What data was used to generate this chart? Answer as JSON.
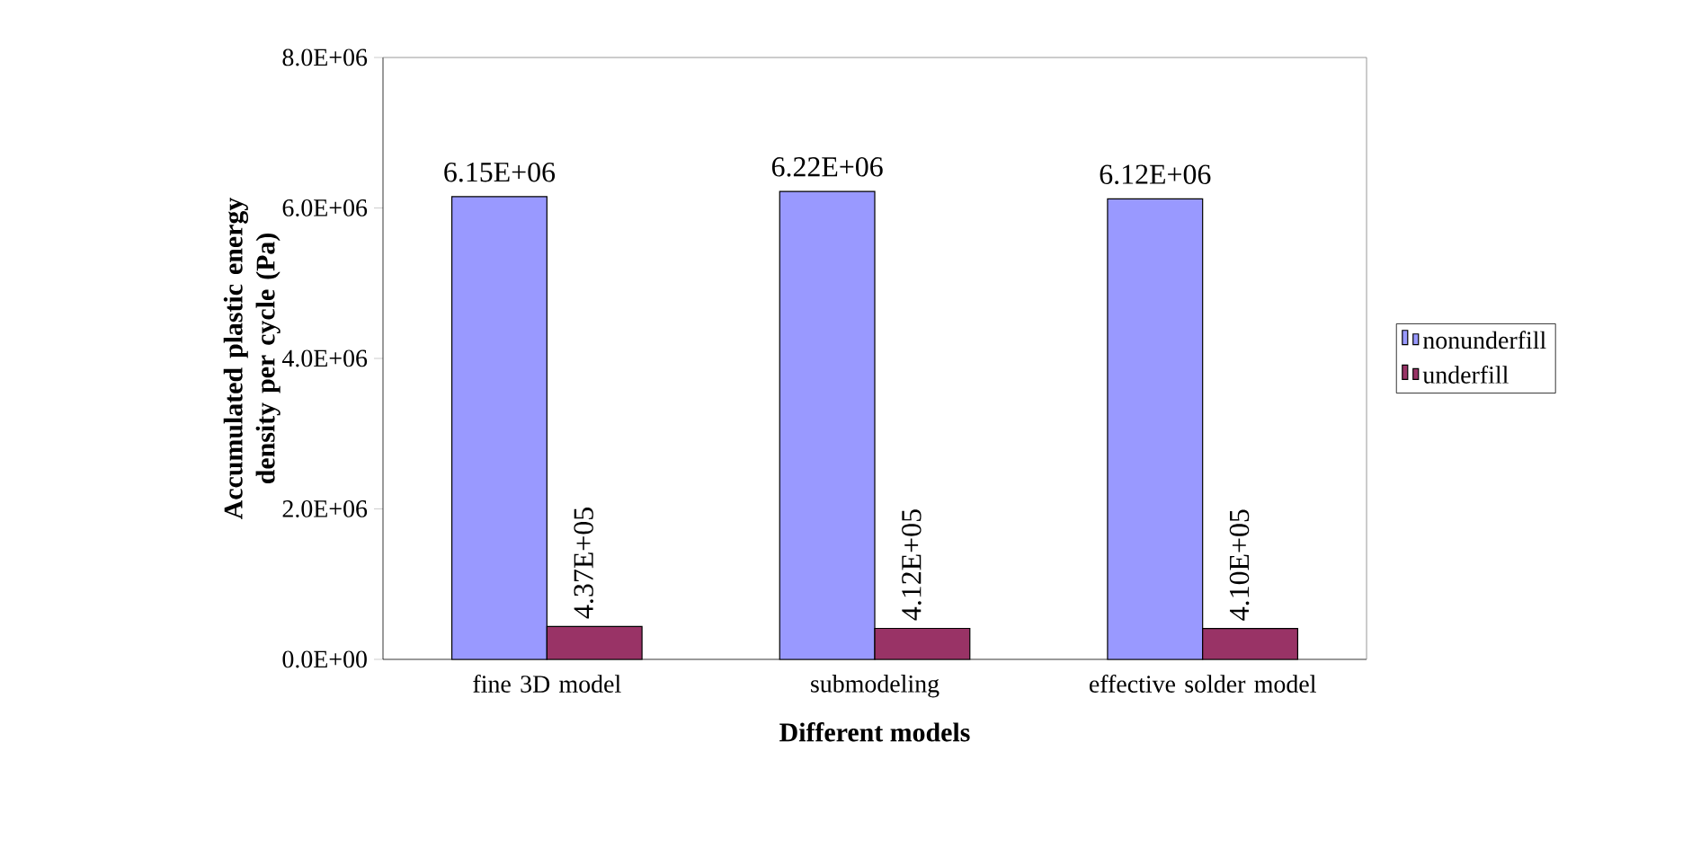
{
  "chart_data": {
    "type": "bar",
    "xlabel": "Different models",
    "ylabel": "Accumulated plastic energy density per cycle (Pa)",
    "categories": [
      "fine 3D model",
      "submodeling",
      "effective solder model"
    ],
    "series": [
      {
        "name": "nonunderfill",
        "color": "#9999ff",
        "values": [
          6150000,
          6220000,
          6120000
        ],
        "value_labels": [
          "6.15E+06",
          "6.22E+06",
          "6.12E+06"
        ]
      },
      {
        "name": "underfill",
        "color": "#993366",
        "values": [
          437000,
          412000,
          410000
        ],
        "value_labels": [
          "4.37E+05",
          "4.12E+05",
          "4.10E+05"
        ]
      }
    ],
    "ylim": [
      0,
      8000000
    ],
    "yticks": [
      {
        "value": 0,
        "label": "0.0E+00"
      },
      {
        "value": 2000000,
        "label": "2.0E+06"
      },
      {
        "value": 4000000,
        "label": "4.0E+06"
      },
      {
        "value": 6000000,
        "label": "6.0E+06"
      },
      {
        "value": 8000000,
        "label": "8.0E+06"
      }
    ],
    "grid": false,
    "legend": "right"
  }
}
